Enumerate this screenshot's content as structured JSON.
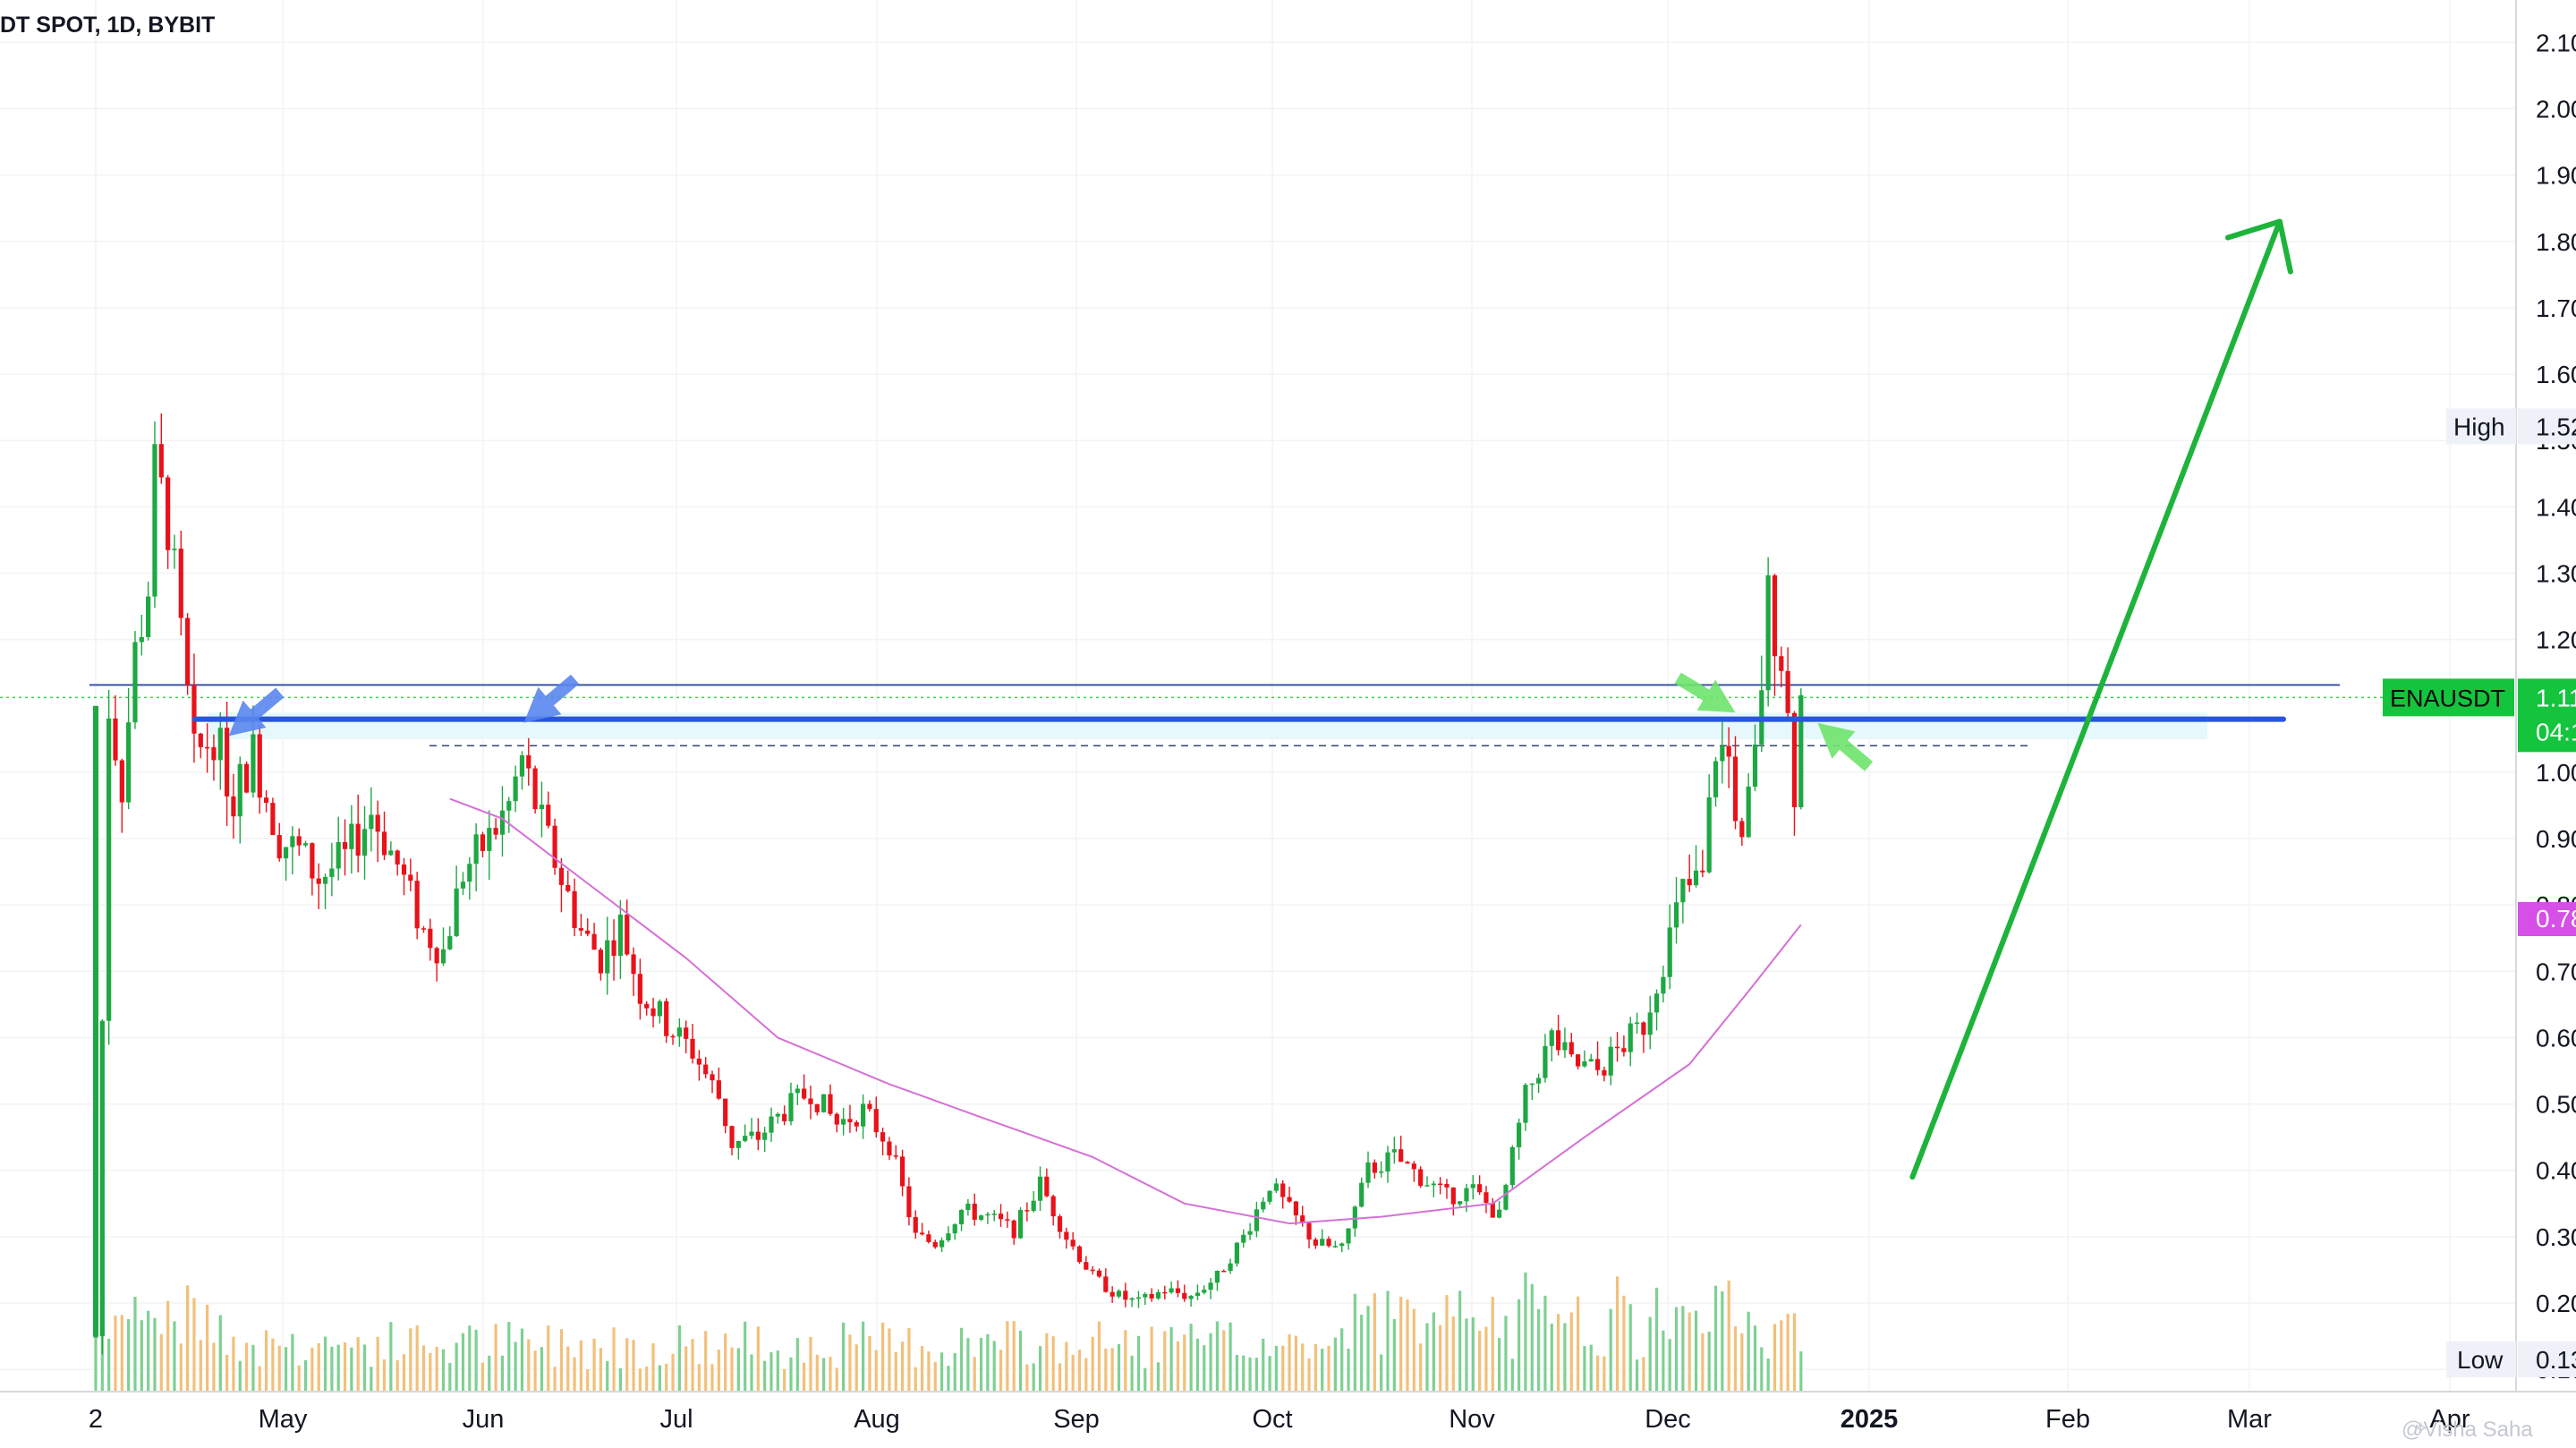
{
  "header": {
    "title": "DT SPOT, 1D, BYBIT"
  },
  "watermark": "@Visha Saha",
  "colors": {
    "up": "#1ea743",
    "down": "#e8121a",
    "ma": "#d670d6",
    "resistance": "#2856d8",
    "arrow_blue": "#5a86ef",
    "arrow_green": "#6ee36b",
    "projection": "#1eb33a",
    "zone": "#e6f8fb",
    "price_tag": "#13c43c",
    "ma_tag": "#d64fe6",
    "vol_up": "#7ed092",
    "vol_down": "#f2c07a"
  },
  "icons": [
    "arrow-icon",
    "logo-icon"
  ],
  "chart_data": {
    "type": "candlestick",
    "symbol": "ENAUSDT",
    "interval": "1D",
    "exchange": "BYBIT",
    "x_labels": [
      "2",
      "May",
      "Jun",
      "Jul",
      "Aug",
      "Sep",
      "Oct",
      "Nov",
      "Dec",
      "2025",
      "Feb",
      "Mar",
      "Apr"
    ],
    "x_label_bold": "2025",
    "y_ticks": [
      "2.10",
      "2.00",
      "1.90",
      "1.80",
      "1.70",
      "1.60",
      "1.50",
      "1.40",
      "1.30",
      "1.20",
      "1.00",
      "0.90",
      "0.80",
      "0.70",
      "0.60",
      "0.50",
      "0.40",
      "0.30",
      "0.20",
      "0.10"
    ],
    "y_range": [
      0.08,
      2.13
    ],
    "high_label": "High",
    "high_value": "1.52",
    "low_label": "Low",
    "low_value": "0.13",
    "current_symbol": "ENAUSDT",
    "current_price": "1.11",
    "countdown": "04:1",
    "ma_value": "0.78",
    "resistance_level": 1.08,
    "dashed_level": 1.04,
    "zone_range": [
      1.05,
      1.09
    ],
    "ma_curve": [
      [
        "2024-05-26",
        0.96
      ],
      [
        "2024-06-03",
        0.93
      ],
      [
        "2024-06-15",
        0.84
      ],
      [
        "2024-07-01",
        0.72
      ],
      [
        "2024-07-15",
        0.6
      ],
      [
        "2024-08-01",
        0.53
      ],
      [
        "2024-08-15",
        0.48
      ],
      [
        "2024-09-01",
        0.42
      ],
      [
        "2024-09-15",
        0.35
      ],
      [
        "2024-10-01",
        0.32
      ],
      [
        "2024-10-15",
        0.33
      ],
      [
        "2024-11-01",
        0.35
      ],
      [
        "2024-11-15",
        0.45
      ],
      [
        "2024-12-01",
        0.56
      ],
      [
        "2024-12-10",
        0.67
      ],
      [
        "2024-12-18",
        0.77
      ]
    ],
    "price_path": [
      [
        "2024-04-02",
        0.15
      ],
      [
        "2024-04-04",
        1.1
      ],
      [
        "2024-04-06",
        0.98
      ],
      [
        "2024-04-08",
        1.18
      ],
      [
        "2024-04-10",
        1.28
      ],
      [
        "2024-04-11",
        1.45
      ],
      [
        "2024-04-13",
        1.38
      ],
      [
        "2024-04-15",
        1.2
      ],
      [
        "2024-04-17",
        1.02
      ],
      [
        "2024-04-20",
        1.06
      ],
      [
        "2024-04-23",
        0.96
      ],
      [
        "2024-04-26",
        1.03
      ],
      [
        "2024-04-30",
        0.9
      ],
      [
        "2024-05-03",
        0.88
      ],
      [
        "2024-05-06",
        0.84
      ],
      [
        "2024-05-10",
        0.87
      ],
      [
        "2024-05-14",
        0.94
      ],
      [
        "2024-05-18",
        0.86
      ],
      [
        "2024-05-22",
        0.76
      ],
      [
        "2024-05-25",
        0.73
      ],
      [
        "2024-05-28",
        0.85
      ],
      [
        "2024-06-01",
        0.9
      ],
      [
        "2024-06-04",
        0.95
      ],
      [
        "2024-06-06",
        1.02
      ],
      [
        "2024-06-09",
        0.92
      ],
      [
        "2024-06-12",
        0.84
      ],
      [
        "2024-06-15",
        0.76
      ],
      [
        "2024-06-18",
        0.72
      ],
      [
        "2024-06-21",
        0.77
      ],
      [
        "2024-06-24",
        0.67
      ],
      [
        "2024-06-28",
        0.62
      ],
      [
        "2024-07-02",
        0.58
      ],
      [
        "2024-07-06",
        0.51
      ],
      [
        "2024-07-08",
        0.44
      ],
      [
        "2024-07-12",
        0.45
      ],
      [
        "2024-07-16",
        0.49
      ],
      [
        "2024-07-20",
        0.52
      ],
      [
        "2024-07-24",
        0.47
      ],
      [
        "2024-07-28",
        0.49
      ],
      [
        "2024-08-01",
        0.44
      ],
      [
        "2024-08-05",
        0.3
      ],
      [
        "2024-08-08",
        0.29
      ],
      [
        "2024-08-12",
        0.34
      ],
      [
        "2024-08-16",
        0.33
      ],
      [
        "2024-08-20",
        0.31
      ],
      [
        "2024-08-24",
        0.38
      ],
      [
        "2024-08-28",
        0.3
      ],
      [
        "2024-09-01",
        0.24
      ],
      [
        "2024-09-05",
        0.21
      ],
      [
        "2024-09-08",
        0.2
      ],
      [
        "2024-09-12",
        0.22
      ],
      [
        "2024-09-16",
        0.21
      ],
      [
        "2024-09-20",
        0.24
      ],
      [
        "2024-09-24",
        0.3
      ],
      [
        "2024-09-28",
        0.38
      ],
      [
        "2024-10-01",
        0.34
      ],
      [
        "2024-10-05",
        0.29
      ],
      [
        "2024-10-09",
        0.28
      ],
      [
        "2024-10-13",
        0.4
      ],
      [
        "2024-10-17",
        0.42
      ],
      [
        "2024-10-21",
        0.39
      ],
      [
        "2024-10-25",
        0.36
      ],
      [
        "2024-10-29",
        0.37
      ],
      [
        "2024-11-02",
        0.33
      ],
      [
        "2024-11-06",
        0.51
      ],
      [
        "2024-11-10",
        0.6
      ],
      [
        "2024-11-13",
        0.56
      ],
      [
        "2024-11-17",
        0.55
      ],
      [
        "2024-11-21",
        0.59
      ],
      [
        "2024-11-24",
        0.62
      ],
      [
        "2024-11-27",
        0.72
      ],
      [
        "2024-11-30",
        0.82
      ],
      [
        "2024-12-03",
        0.84
      ],
      [
        "2024-12-05",
        1.04
      ],
      [
        "2024-12-07",
        1.02
      ],
      [
        "2024-12-09",
        0.88
      ],
      [
        "2024-12-11",
        1.02
      ],
      [
        "2024-12-13",
        1.26
      ],
      [
        "2024-12-15",
        1.18
      ],
      [
        "2024-12-17",
        0.98
      ],
      [
        "2024-12-18",
        1.11
      ]
    ],
    "annotations": [
      {
        "type": "arrow",
        "color": "blue",
        "date": "2024-04-22",
        "price": 1.06
      },
      {
        "type": "arrow",
        "color": "blue",
        "date": "2024-06-06",
        "price": 1.08
      },
      {
        "type": "arrow",
        "color": "green",
        "date": "2024-12-08",
        "price": 1.09
      },
      {
        "type": "arrow",
        "color": "green",
        "date": "2024-12-20",
        "price": 1.05
      },
      {
        "type": "projection",
        "from": [
          "2025-01-04",
          0.39
        ],
        "to": [
          "2025-03-01",
          1.83
        ]
      }
    ],
    "grid": true
  }
}
